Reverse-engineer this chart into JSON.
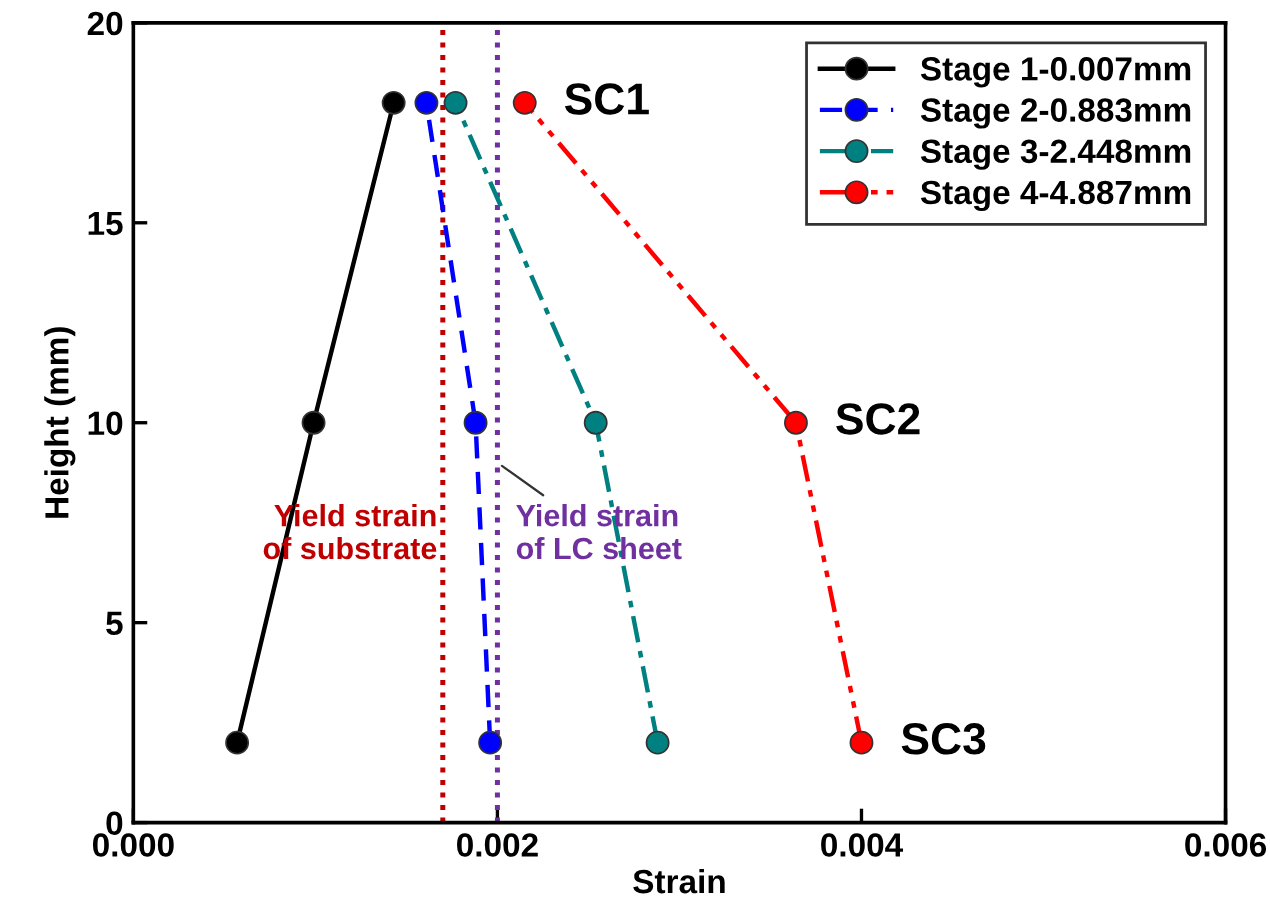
{
  "chart_data": {
    "type": "line",
    "xlabel": "Strain",
    "ylabel": "Height (mm)",
    "xlim": [
      0,
      0.006
    ],
    "ylim": [
      0,
      20
    ],
    "xticks": [
      {
        "value": 0,
        "label": "0.000"
      },
      {
        "value": 0.002,
        "label": "0.002"
      },
      {
        "value": 0.004,
        "label": "0.004"
      },
      {
        "value": 0.006,
        "label": "0.006"
      }
    ],
    "yticks": [
      0,
      5,
      10,
      15,
      20
    ],
    "marker": "circle",
    "grid": false,
    "legend": "top right",
    "series": [
      {
        "name": "Stage 1-0.007mm",
        "color": "#000000",
        "line_style": "solid",
        "x": [
          0.00057,
          0.00099,
          0.00143
        ],
        "values": [
          2,
          10,
          18
        ]
      },
      {
        "name": "Stage 2-0.883mm",
        "color": "#0000ff",
        "line_style": "dashed",
        "x": [
          0.00196,
          0.00188,
          0.00161
        ],
        "values": [
          2,
          10,
          18
        ]
      },
      {
        "name": "Stage 3-2.448mm",
        "color": "#008080",
        "line_style": "dashdot",
        "x": [
          0.00288,
          0.00254,
          0.00177
        ],
        "values": [
          2,
          10,
          18
        ]
      },
      {
        "name": "Stage 4-4.887mm",
        "color": "#ff0000",
        "line_style": "dashdotdot",
        "x": [
          0.004,
          0.00364,
          0.00215
        ],
        "values": [
          2,
          10,
          18
        ]
      }
    ],
    "ref_lines": [
      {
        "axis": "x",
        "value": 0.0017,
        "label": "Yield strain\nof substrate",
        "color": "#c00000",
        "line_style": "dotted"
      },
      {
        "axis": "x",
        "value": 0.002,
        "label": "Yield strain\nof LC sheet",
        "color": "#7030a0",
        "line_style": "dotted"
      }
    ],
    "annotations": [
      {
        "text": "SC1",
        "x": 0.00215,
        "y": 18
      },
      {
        "text": "SC2",
        "x": 0.00364,
        "y": 10
      },
      {
        "text": "SC3",
        "x": 0.004,
        "y": 2
      }
    ]
  }
}
